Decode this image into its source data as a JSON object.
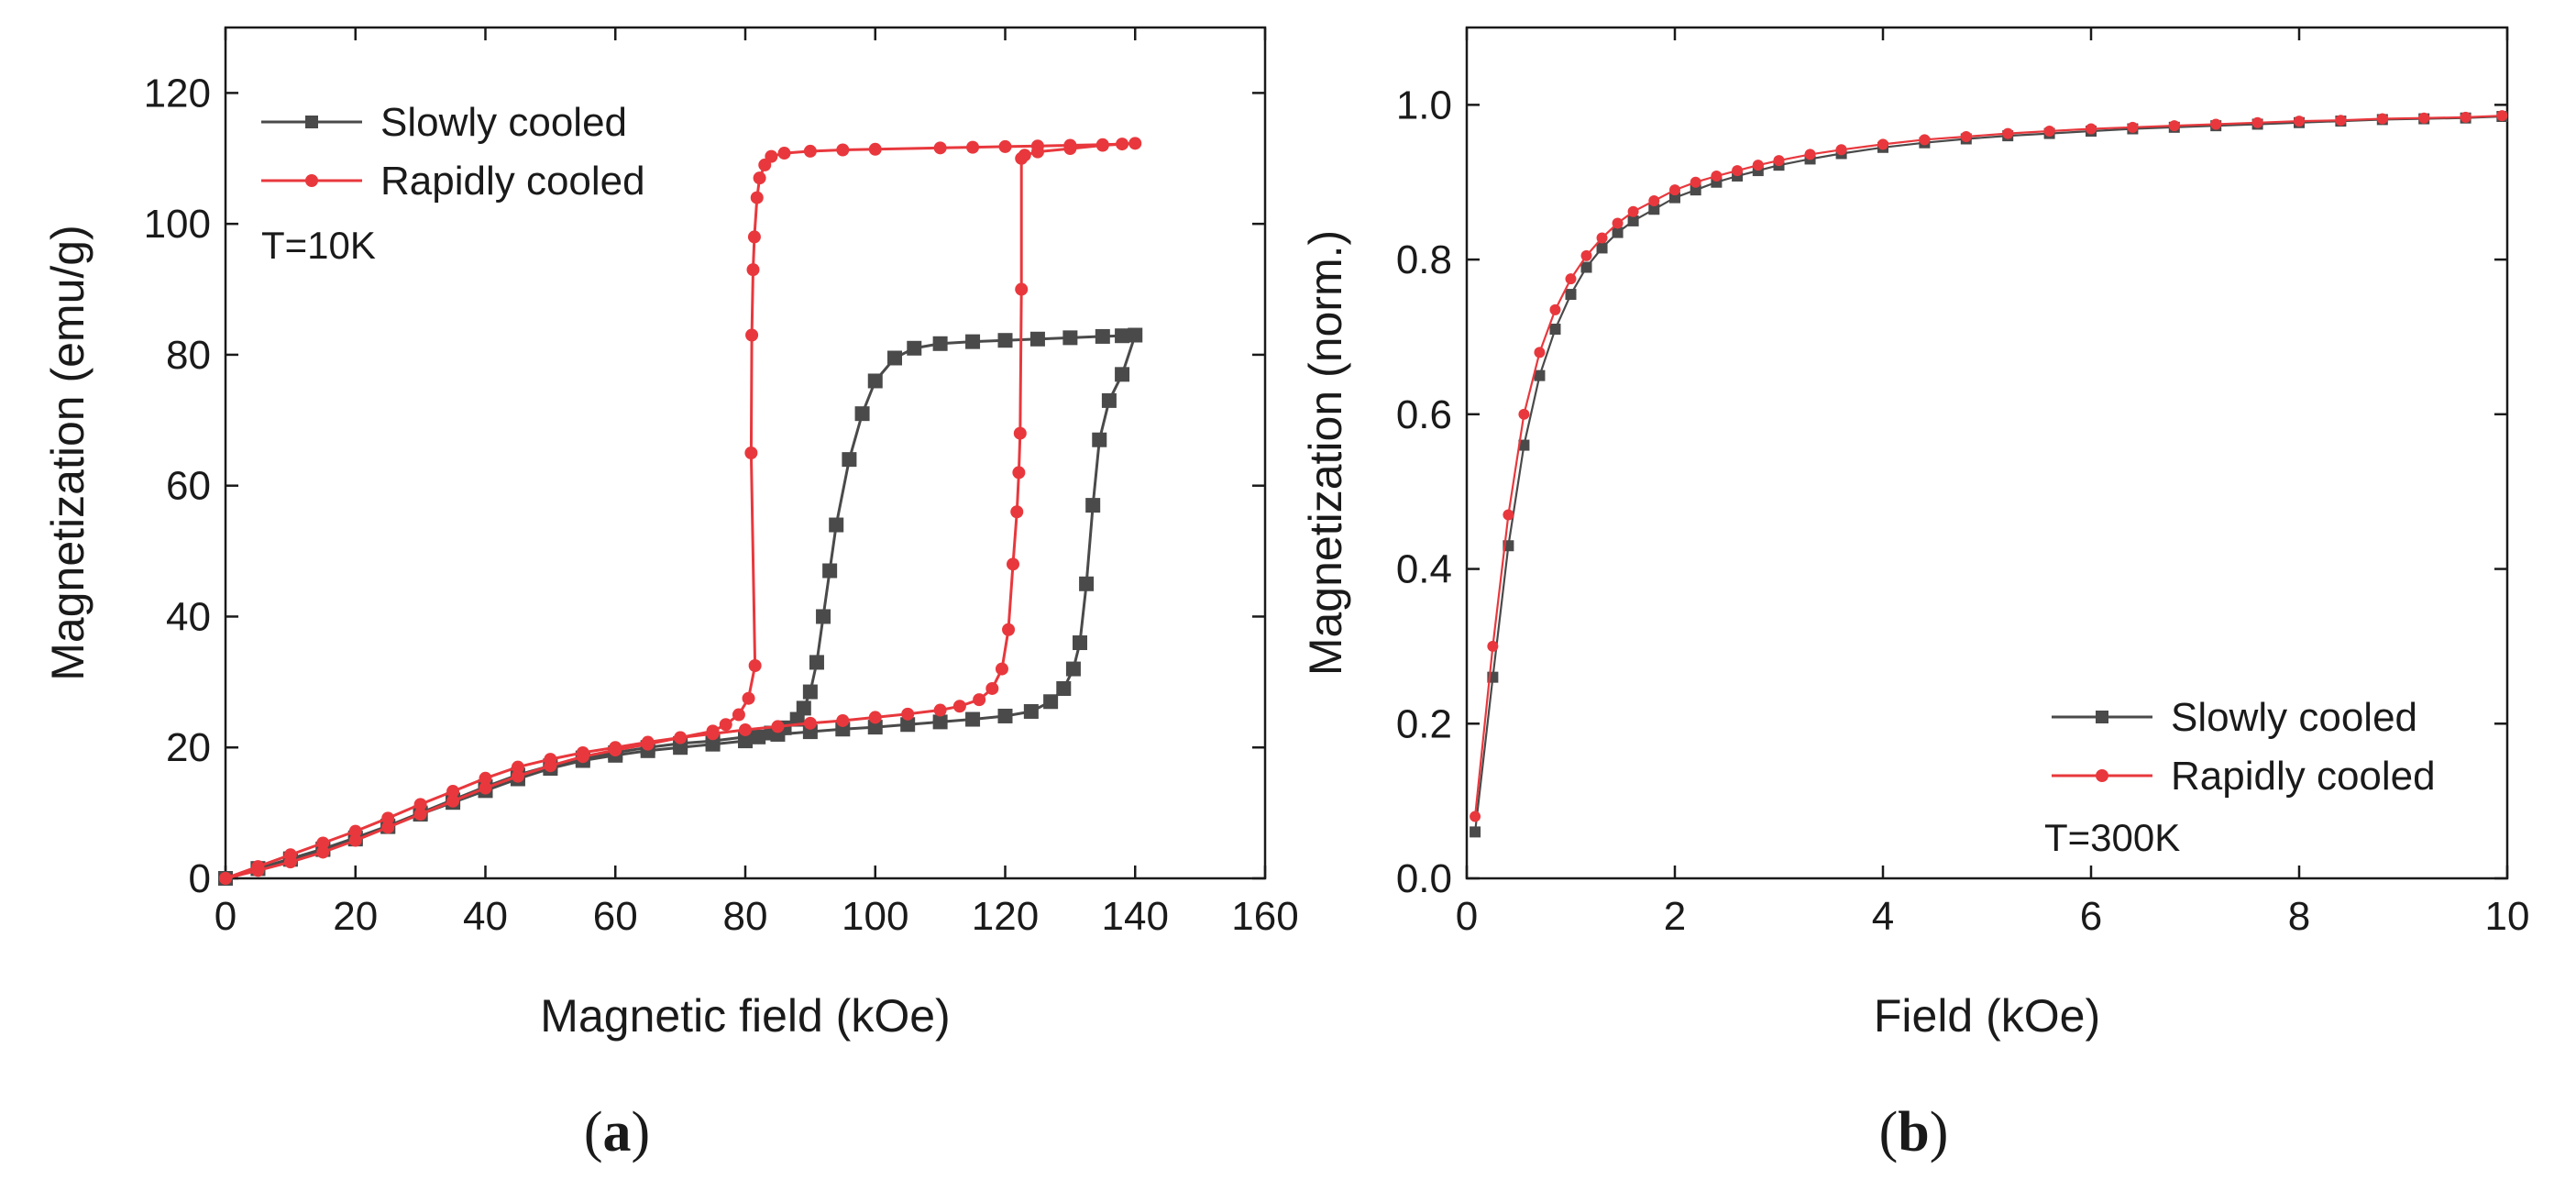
{
  "chart_data": [
    {
      "type": "line",
      "panel_label": {
        "open": "(",
        "letter": "a",
        "close": ")"
      },
      "xlabel": "Magnetic field (kOe)",
      "ylabel": "Magnetization (emu/g)",
      "xlim": [
        0,
        160
      ],
      "ylim": [
        0,
        130
      ],
      "xticks": [
        0,
        20,
        40,
        60,
        80,
        100,
        120,
        140,
        160
      ],
      "yticks": [
        0,
        20,
        40,
        60,
        80,
        100,
        120
      ],
      "legend_position": "top-left",
      "annotation": "T=10K",
      "series": [
        {
          "name": "Slowly cooled",
          "color": "#4a4a4a",
          "marker": "square",
          "x": [
            0,
            5,
            10,
            15,
            20,
            25,
            30,
            35,
            40,
            45,
            50,
            55,
            60,
            65,
            70,
            75,
            80,
            85,
            90,
            95,
            100,
            105,
            110,
            115,
            120,
            124,
            127,
            129,
            130.5,
            131.5,
            132.5,
            133.5,
            134.5,
            136,
            138,
            140,
            138,
            135,
            130,
            125,
            120,
            115,
            110,
            106,
            103,
            100,
            98,
            96,
            94,
            93,
            92,
            91,
            90,
            89,
            88,
            86,
            84,
            82,
            80,
            75,
            70,
            65,
            60,
            55,
            50,
            45,
            40,
            35,
            30,
            25,
            20,
            15,
            10,
            5,
            0
          ],
          "y": [
            0,
            1.5,
            3,
            4.5,
            6.2,
            8,
            10,
            12,
            14,
            15.8,
            17.2,
            18.4,
            19.2,
            20,
            20.6,
            21,
            21.6,
            22,
            22.4,
            22.8,
            23.1,
            23.5,
            23.9,
            24.3,
            24.8,
            25.5,
            27,
            29,
            32,
            36,
            45,
            57,
            67,
            73,
            77,
            83,
            82.9,
            82.8,
            82.6,
            82.4,
            82.2,
            82,
            81.7,
            81,
            79.5,
            76,
            71,
            64,
            54,
            47,
            40,
            33,
            28.5,
            26,
            24.3,
            23,
            22.2,
            21.6,
            21,
            20.5,
            20,
            19.5,
            18.8,
            18,
            16.8,
            15.2,
            13.4,
            11.6,
            9.8,
            7.9,
            6,
            4.4,
            2.9,
            1.5,
            0
          ]
        },
        {
          "name": "Rapidly cooled",
          "color": "#e8383d",
          "marker": "circle",
          "x": [
            0,
            5,
            10,
            15,
            20,
            25,
            30,
            35,
            40,
            45,
            50,
            55,
            60,
            65,
            70,
            75,
            80,
            85,
            90,
            95,
            100,
            105,
            110,
            113,
            116,
            118,
            119.5,
            120.5,
            121.2,
            121.8,
            122.1,
            122.3,
            122.5,
            122.5,
            123,
            125,
            130,
            135,
            140,
            138,
            135,
            130,
            125,
            120,
            115,
            110,
            100,
            95,
            90,
            86,
            84,
            83,
            82.2,
            81.8,
            81.4,
            81.2,
            81,
            80.9,
            81.5,
            80.5,
            79,
            77,
            75,
            70,
            65,
            60,
            55,
            50,
            45,
            40,
            35,
            30,
            25,
            20,
            15,
            10,
            5,
            0
          ],
          "y": [
            0,
            1.8,
            3.6,
            5.4,
            7.2,
            9.2,
            11.3,
            13.3,
            15.3,
            17,
            18.2,
            19.2,
            20,
            20.8,
            21.5,
            22.1,
            22.7,
            23.2,
            23.7,
            24.1,
            24.6,
            25.1,
            25.7,
            26.3,
            27.3,
            29,
            32,
            38,
            48,
            56,
            62,
            68,
            90,
            110,
            110.5,
            111,
            111.5,
            112,
            112.3,
            112.2,
            112.1,
            112,
            111.9,
            111.8,
            111.7,
            111.6,
            111.4,
            111.3,
            111.1,
            110.8,
            110.3,
            109,
            107,
            104,
            98,
            93,
            83,
            65,
            32.5,
            27.5,
            25,
            23.5,
            22.5,
            21.5,
            20.5,
            19.6,
            18.6,
            17.2,
            15.6,
            13.8,
            11.8,
            9.8,
            7.8,
            5.8,
            4,
            2.5,
            1.2,
            0
          ]
        }
      ]
    },
    {
      "type": "line",
      "panel_label": {
        "open": "(",
        "letter": "b",
        "close": ")"
      },
      "xlabel": "Field (kOe)",
      "ylabel": "Magnetization (norm.)",
      "xlim": [
        0,
        10
      ],
      "ylim": [
        0,
        1.1
      ],
      "xticks": [
        0,
        2,
        4,
        6,
        8,
        10
      ],
      "yticks": [
        0.0,
        0.2,
        0.4,
        0.6,
        0.8,
        1.0
      ],
      "legend_position": "bottom-right",
      "annotation": "T=300K",
      "series": [
        {
          "name": "Slowly cooled",
          "color": "#4a4a4a",
          "marker": "square",
          "x": [
            0.08,
            0.25,
            0.4,
            0.55,
            0.7,
            0.85,
            1.0,
            1.15,
            1.3,
            1.45,
            1.6,
            1.8,
            2.0,
            2.2,
            2.4,
            2.6,
            2.8,
            3.0,
            3.3,
            3.6,
            4.0,
            4.4,
            4.8,
            5.2,
            5.6,
            6.0,
            6.4,
            6.8,
            7.2,
            7.6,
            8.0,
            8.4,
            8.8,
            9.2,
            9.6,
            9.95
          ],
          "y": [
            0.06,
            0.26,
            0.43,
            0.56,
            0.65,
            0.71,
            0.755,
            0.79,
            0.815,
            0.835,
            0.85,
            0.865,
            0.88,
            0.89,
            0.9,
            0.908,
            0.915,
            0.922,
            0.93,
            0.937,
            0.945,
            0.951,
            0.956,
            0.96,
            0.963,
            0.966,
            0.969,
            0.971,
            0.973,
            0.975,
            0.977,
            0.979,
            0.981,
            0.982,
            0.983,
            0.985
          ]
        },
        {
          "name": "Rapidly cooled",
          "color": "#e8383d",
          "marker": "circle",
          "x": [
            0.08,
            0.25,
            0.4,
            0.55,
            0.7,
            0.85,
            1.0,
            1.15,
            1.3,
            1.45,
            1.6,
            1.8,
            2.0,
            2.2,
            2.4,
            2.6,
            2.8,
            3.0,
            3.3,
            3.6,
            4.0,
            4.4,
            4.8,
            5.2,
            5.6,
            6.0,
            6.4,
            6.8,
            7.2,
            7.6,
            8.0,
            8.4,
            8.8,
            9.2,
            9.6,
            9.95
          ],
          "y": [
            0.08,
            0.3,
            0.47,
            0.6,
            0.68,
            0.735,
            0.775,
            0.805,
            0.828,
            0.847,
            0.862,
            0.876,
            0.89,
            0.9,
            0.908,
            0.915,
            0.922,
            0.928,
            0.936,
            0.942,
            0.949,
            0.955,
            0.959,
            0.963,
            0.966,
            0.969,
            0.971,
            0.973,
            0.975,
            0.977,
            0.979,
            0.98,
            0.982,
            0.983,
            0.984,
            0.986
          ]
        }
      ]
    }
  ]
}
